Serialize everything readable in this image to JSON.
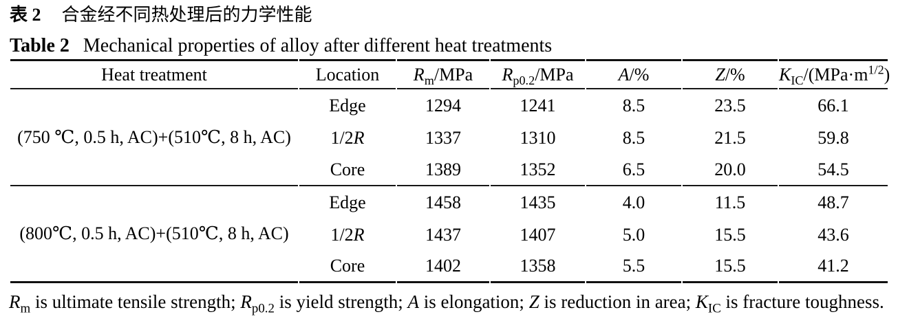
{
  "caption_cn": {
    "label": "表 2",
    "text": "合金经不同热处理后的力学性能"
  },
  "caption_en": {
    "label": "Table 2",
    "text": "Mechanical properties of alloy after different heat treatments"
  },
  "table": {
    "headers": {
      "heat_treatment": "Heat treatment",
      "location": "Location",
      "rm": {
        "sym": "R",
        "sub": "m",
        "rest": "/MPa"
      },
      "rp02": {
        "sym": "R",
        "sub": "p0.2",
        "rest": "/MPa"
      },
      "a": {
        "sym": "A",
        "rest": "/%"
      },
      "z": {
        "sym": "Z",
        "rest": "/%"
      },
      "kic": {
        "sym": "K",
        "sub": "IC",
        "mid": "/(MPa·m",
        "sup": "1/2",
        "end": ")"
      }
    },
    "groups": [
      {
        "heat_treatment": "(750 ℃, 0.5 h, AC)+(510℃, 8 h, AC)",
        "rows": [
          {
            "location": {
              "pre": "Edge",
              "sym": ""
            },
            "rm": "1294",
            "rp02": "1241",
            "a": "8.5",
            "z": "23.5",
            "kic": "66.1"
          },
          {
            "location": {
              "pre": "1/2",
              "sym": "R"
            },
            "rm": "1337",
            "rp02": "1310",
            "a": "8.5",
            "z": "21.5",
            "kic": "59.8"
          },
          {
            "location": {
              "pre": "Core",
              "sym": ""
            },
            "rm": "1389",
            "rp02": "1352",
            "a": "6.5",
            "z": "20.0",
            "kic": "54.5"
          }
        ]
      },
      {
        "heat_treatment": "(800℃, 0.5 h, AC)+(510℃, 8 h, AC)",
        "rows": [
          {
            "location": {
              "pre": "Edge",
              "sym": ""
            },
            "rm": "1458",
            "rp02": "1435",
            "a": "4.0",
            "z": "11.5",
            "kic": "48.7"
          },
          {
            "location": {
              "pre": "1/2",
              "sym": "R"
            },
            "rm": "1437",
            "rp02": "1407",
            "a": "5.0",
            "z": "15.5",
            "kic": "43.6"
          },
          {
            "location": {
              "pre": "Core",
              "sym": ""
            },
            "rm": "1402",
            "rp02": "1358",
            "a": "5.5",
            "z": "15.5",
            "kic": "41.2"
          }
        ]
      }
    ]
  },
  "footnote": {
    "segments": [
      {
        "style": "italic",
        "text": "R"
      },
      {
        "style": "sub",
        "text": "m"
      },
      {
        "style": "normal",
        "text": " is ultimate tensile strength; "
      },
      {
        "style": "italic",
        "text": "R"
      },
      {
        "style": "sub",
        "text": "p0.2"
      },
      {
        "style": "normal",
        "text": " is yield strength; "
      },
      {
        "style": "italic",
        "text": "A"
      },
      {
        "style": "normal",
        "text": " is elongation; "
      },
      {
        "style": "italic",
        "text": "Z"
      },
      {
        "style": "normal",
        "text": " is reduction in area; "
      },
      {
        "style": "italic",
        "text": "K"
      },
      {
        "style": "sub",
        "text": "IC"
      },
      {
        "style": "normal",
        "text": " is fracture toughness."
      }
    ]
  },
  "chart_data": {
    "type": "table",
    "title_cn": "表 2 合金经不同热处理后的力学性能",
    "title_en": "Table 2 Mechanical properties of alloy after different heat treatments",
    "columns": [
      "Heat treatment",
      "Location",
      "Rm/MPa",
      "Rp0.2/MPa",
      "A/%",
      "Z/%",
      "KIC/(MPa·m^1/2)"
    ],
    "rows": [
      [
        "(750 ℃, 0.5 h, AC)+(510℃, 8 h, AC)",
        "Edge",
        1294,
        1241,
        8.5,
        23.5,
        66.1
      ],
      [
        "(750 ℃, 0.5 h, AC)+(510℃, 8 h, AC)",
        "1/2R",
        1337,
        1310,
        8.5,
        21.5,
        59.8
      ],
      [
        "(750 ℃, 0.5 h, AC)+(510℃, 8 h, AC)",
        "Core",
        1389,
        1352,
        6.5,
        20.0,
        54.5
      ],
      [
        "(800℃, 0.5 h, AC)+(510℃, 8 h, AC)",
        "Edge",
        1458,
        1435,
        4.0,
        11.5,
        48.7
      ],
      [
        "(800℃, 0.5 h, AC)+(510℃, 8 h, AC)",
        "1/2R",
        1437,
        1407,
        5.0,
        15.5,
        43.6
      ],
      [
        "(800℃, 0.5 h, AC)+(510℃, 8 h, AC)",
        "Core",
        1402,
        1358,
        5.5,
        15.5,
        41.2
      ]
    ],
    "footnote": "Rm is ultimate tensile strength; Rp0.2 is yield strength; A is elongation; Z is reduction in area; KIC is fracture toughness."
  }
}
